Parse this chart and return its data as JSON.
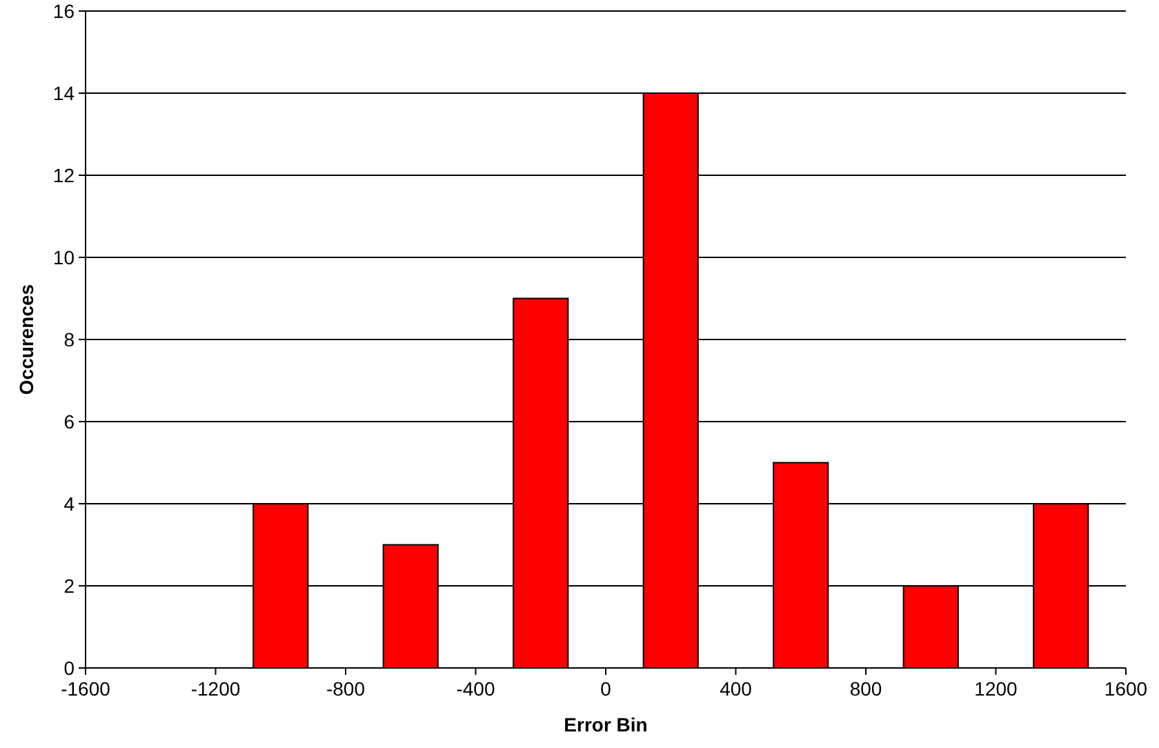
{
  "chart_data": {
    "type": "histogram",
    "xlabel": "Error Bin",
    "ylabel": "Occurences",
    "bins": [
      -1600,
      -1200,
      -800,
      -400,
      0,
      400,
      800,
      1200,
      1600
    ],
    "values": [
      0,
      4,
      3,
      9,
      14,
      5,
      2,
      4
    ],
    "color": "#ff0000",
    "xlim": [
      -1600,
      1600
    ],
    "xticks": [
      -1600,
      -1200,
      -800,
      -400,
      0,
      400,
      800,
      1200,
      1600
    ],
    "ylim": [
      0,
      16
    ],
    "yticks": [
      0,
      2,
      4,
      6,
      8,
      10,
      12,
      14,
      16
    ],
    "grid": "y"
  }
}
